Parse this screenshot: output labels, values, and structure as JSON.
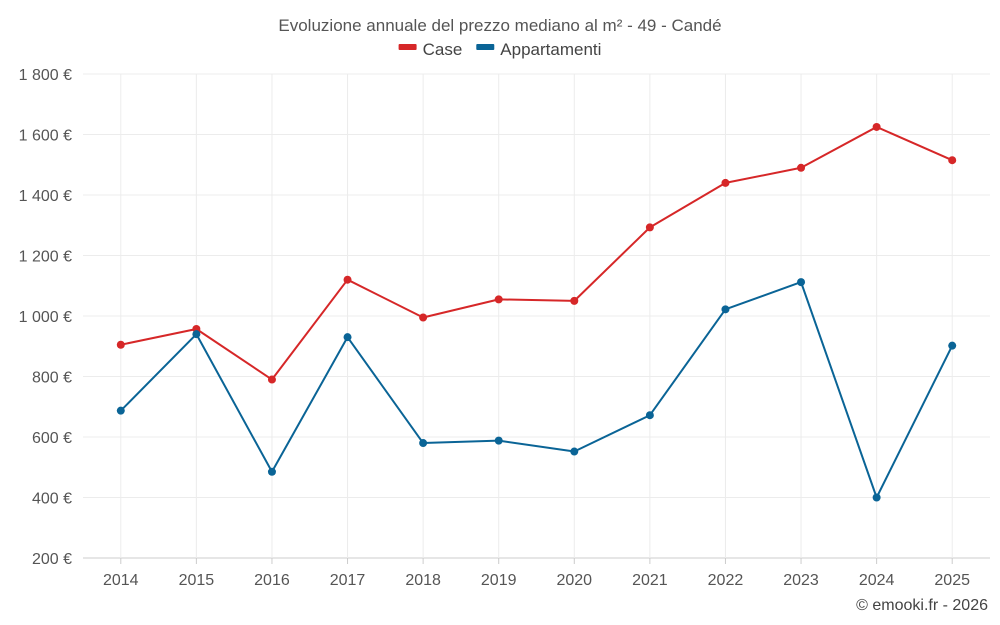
{
  "chart_data": {
    "type": "line",
    "title": "Evoluzione annuale del prezzo mediano al m² - 49 - Candé",
    "categories": [
      "2014",
      "2015",
      "2016",
      "2017",
      "2018",
      "2019",
      "2020",
      "2021",
      "2022",
      "2023",
      "2024",
      "2025"
    ],
    "series": [
      {
        "name": "Case",
        "color": "#d62728",
        "values": [
          905,
          957,
          790,
          1120,
          995,
          1055,
          1050,
          1293,
          1440,
          1490,
          1625,
          1515
        ]
      },
      {
        "name": "Appartamenti",
        "color": "#0a6496",
        "values": [
          687,
          940,
          485,
          930,
          580,
          588,
          552,
          672,
          1022,
          1112,
          400,
          902
        ]
      }
    ],
    "ylim": [
      200,
      1800
    ],
    "y_ticks": [
      200,
      400,
      600,
      800,
      1000,
      1200,
      1400,
      1600,
      1800
    ],
    "y_tick_labels": [
      "200 €",
      "400 €",
      "600 €",
      "800 €",
      "1 000 €",
      "1 200 €",
      "1 400 €",
      "1 600 €",
      "1 800 €"
    ],
    "xlabel": "",
    "ylabel": "",
    "grid": true,
    "legend": "top-center"
  },
  "credit": "© emooki.fr - 2026"
}
